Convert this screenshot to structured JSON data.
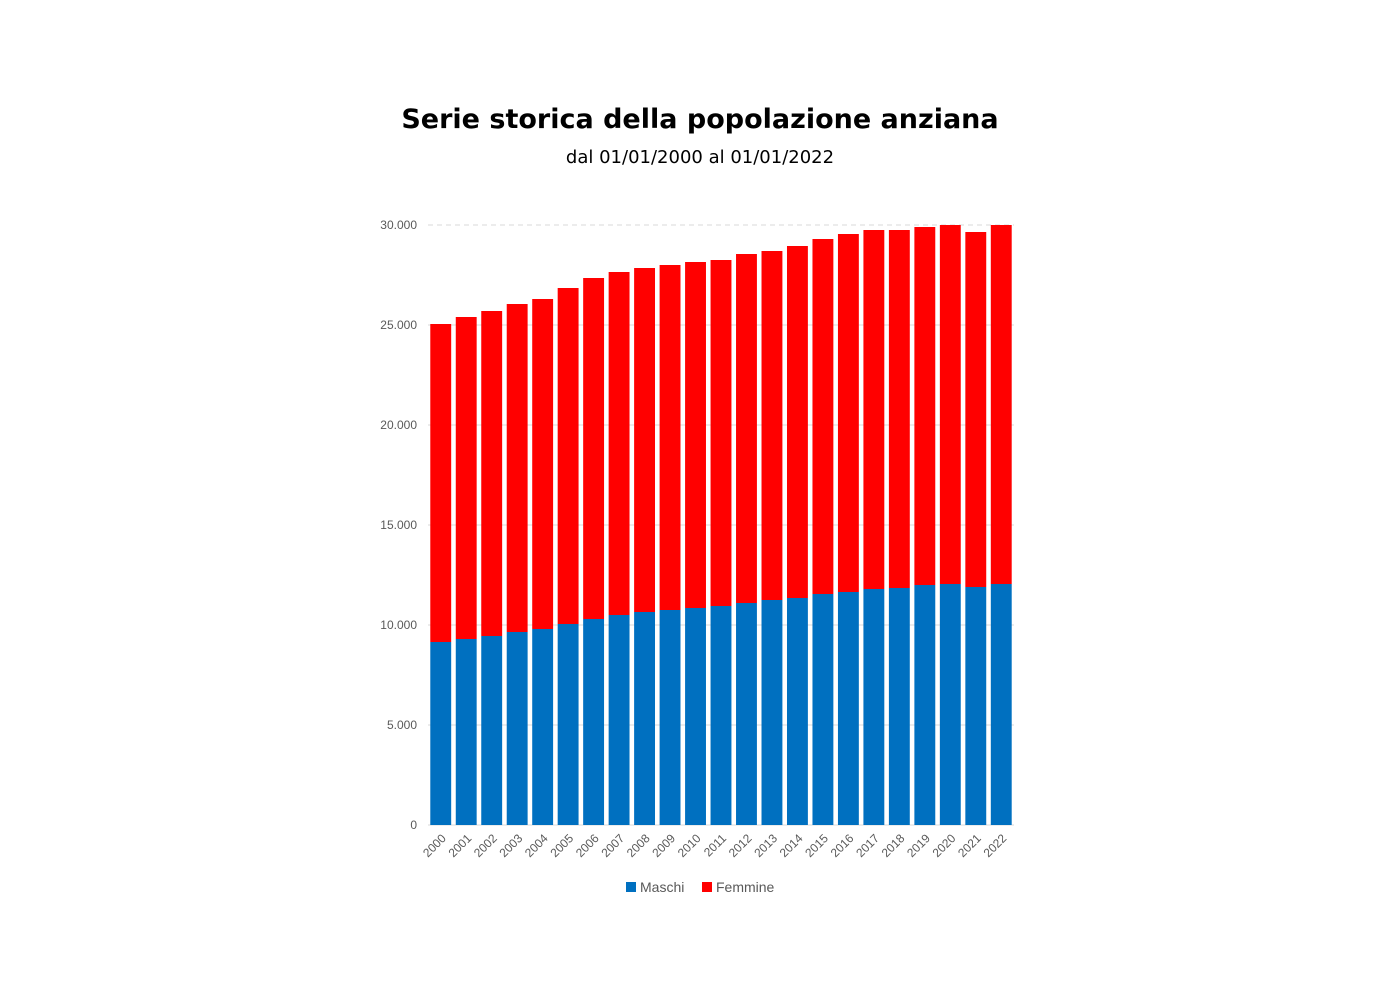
{
  "title": "Serie storica della popolazione anziana",
  "subtitle": "dal 01/01/2000 al 01/01/2022",
  "chart_data": {
    "type": "bar",
    "stacked": true,
    "categories": [
      "2000",
      "2001",
      "2002",
      "2003",
      "2004",
      "2005",
      "2006",
      "2007",
      "2008",
      "2009",
      "2010",
      "2011",
      "2012",
      "2013",
      "2014",
      "2015",
      "2016",
      "2017",
      "2018",
      "2019",
      "2020",
      "2021",
      "2022"
    ],
    "series": [
      {
        "name": "Maschi",
        "color": "#0070C0",
        "values": [
          9150,
          9300,
          9450,
          9650,
          9800,
          10050,
          10300,
          10500,
          10650,
          10750,
          10850,
          10950,
          11100,
          11250,
          11350,
          11550,
          11650,
          11800,
          11850,
          12000,
          12050,
          11900,
          12050
        ]
      },
      {
        "name": "Femmine",
        "color": "#FF0000",
        "values": [
          15900,
          16100,
          16250,
          16400,
          16500,
          16800,
          17050,
          17150,
          17200,
          17250,
          17300,
          17300,
          17450,
          17450,
          17600,
          17750,
          17900,
          17950,
          17900,
          17900,
          17950,
          17750,
          17950
        ]
      }
    ],
    "y_ticks": [
      "0",
      "5.000",
      "10.000",
      "15.000",
      "20.000",
      "25.000",
      "30.000"
    ],
    "ylim": [
      0,
      30000
    ],
    "gridlines": true,
    "legend_position": "bottom"
  }
}
